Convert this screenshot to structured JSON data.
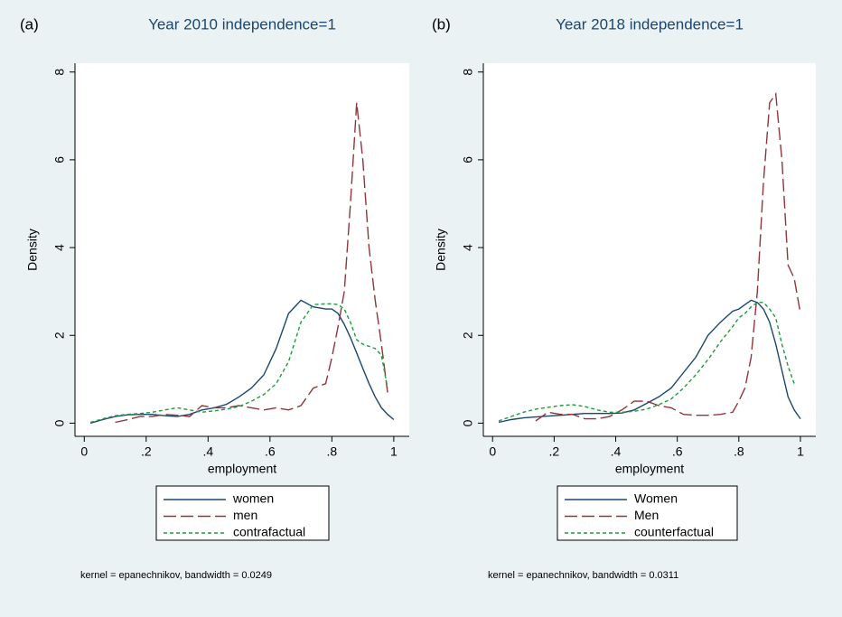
{
  "chart_data": [
    {
      "type": "line",
      "panel_label": "(a)",
      "title": "Year 2010 independence=1",
      "x_label": "employment",
      "y_label": "Density",
      "note": "kernel = epanechnikov, bandwidth = 0.0249",
      "legend": "below",
      "x": [
        0.02,
        0.06,
        0.1,
        0.14,
        0.18,
        0.22,
        0.26,
        0.3,
        0.34,
        0.38,
        0.42,
        0.46,
        0.5,
        0.54,
        0.58,
        0.62,
        0.66,
        0.7,
        0.74,
        0.78,
        0.8,
        0.82,
        0.84,
        0.86,
        0.88,
        0.9,
        0.92,
        0.94,
        0.96,
        0.98,
        1.0
      ],
      "series": [
        {
          "name": "women",
          "color": "#1a476f",
          "style": "solid",
          "values": [
            0.0,
            0.08,
            0.15,
            0.19,
            0.2,
            0.2,
            0.17,
            0.15,
            0.2,
            0.3,
            0.35,
            0.43,
            0.6,
            0.8,
            1.1,
            1.7,
            2.5,
            2.8,
            2.65,
            2.6,
            2.6,
            2.5,
            2.25,
            1.95,
            1.6,
            1.25,
            0.9,
            0.6,
            0.35,
            0.2,
            0.08
          ]
        },
        {
          "name": "men",
          "color": "#90353b",
          "style": "long-dash",
          "values": [
            null,
            null,
            0.02,
            0.08,
            0.15,
            0.15,
            0.2,
            0.18,
            0.15,
            0.4,
            0.35,
            0.35,
            0.4,
            0.35,
            0.3,
            0.35,
            0.3,
            0.4,
            0.8,
            0.9,
            1.5,
            2.2,
            3.0,
            5.0,
            7.3,
            6.0,
            4.0,
            2.8,
            1.8,
            0.7,
            null
          ]
        },
        {
          "name": "contrafactual",
          "color": "#1f9a3b",
          "style": "short-dash",
          "values": [
            0.02,
            0.1,
            0.17,
            0.2,
            0.22,
            0.25,
            0.3,
            0.35,
            0.3,
            0.25,
            0.28,
            0.32,
            0.38,
            0.5,
            0.65,
            0.9,
            1.4,
            2.3,
            2.7,
            2.72,
            2.72,
            2.7,
            2.6,
            2.3,
            1.9,
            1.8,
            1.75,
            1.7,
            1.55,
            0.8,
            null
          ]
        }
      ],
      "xlim": [
        -0.03,
        1.05
      ],
      "ylim": [
        -0.3,
        8.2
      ],
      "xticks": [
        0,
        {
          "value": 0.2,
          "label": ".2"
        },
        {
          "value": 0.4,
          "label": ".4"
        },
        {
          "value": 0.6,
          "label": ".6"
        },
        {
          "value": 0.8,
          "label": ".8"
        },
        1
      ],
      "yticks": [
        0,
        2,
        4,
        6,
        8
      ]
    },
    {
      "type": "line",
      "panel_label": "(b)",
      "title": "Year 2018 independence=1",
      "x_label": "employment",
      "y_label": "Density",
      "note": "kernel = epanechnikov, bandwidth = 0.0311",
      "legend": "below",
      "x": [
        0.02,
        0.06,
        0.1,
        0.14,
        0.18,
        0.22,
        0.26,
        0.3,
        0.34,
        0.38,
        0.42,
        0.46,
        0.5,
        0.54,
        0.58,
        0.62,
        0.66,
        0.7,
        0.74,
        0.78,
        0.8,
        0.82,
        0.84,
        0.86,
        0.88,
        0.9,
        0.92,
        0.94,
        0.96,
        0.98,
        1.0
      ],
      "series": [
        {
          "name": "Women",
          "color": "#1a476f",
          "style": "solid",
          "values": [
            0.02,
            0.08,
            0.12,
            0.14,
            0.16,
            0.18,
            0.2,
            0.22,
            0.22,
            0.22,
            0.23,
            0.3,
            0.45,
            0.6,
            0.8,
            1.15,
            1.5,
            2.0,
            2.3,
            2.55,
            2.6,
            2.7,
            2.8,
            2.75,
            2.6,
            2.3,
            1.8,
            1.2,
            0.6,
            0.3,
            0.1
          ]
        },
        {
          "name": "Men",
          "color": "#90353b",
          "style": "long-dash",
          "values": [
            null,
            null,
            null,
            0.05,
            0.25,
            0.2,
            0.2,
            0.1,
            0.1,
            0.15,
            0.3,
            0.5,
            0.5,
            0.4,
            0.35,
            0.2,
            0.18,
            0.18,
            0.2,
            0.25,
            0.5,
            0.8,
            1.5,
            3.0,
            5.5,
            7.3,
            7.5,
            6.0,
            3.6,
            3.3,
            2.5
          ]
        },
        {
          "name": "counterfactual",
          "color": "#1f9a3b",
          "style": "short-dash",
          "values": [
            0.05,
            0.15,
            0.25,
            0.32,
            0.36,
            0.4,
            0.42,
            0.38,
            0.3,
            0.25,
            0.25,
            0.27,
            0.32,
            0.42,
            0.55,
            0.8,
            1.1,
            1.45,
            1.85,
            2.2,
            2.4,
            2.5,
            2.65,
            2.75,
            2.75,
            2.6,
            2.4,
            1.8,
            1.3,
            0.9,
            null
          ]
        }
      ],
      "xlim": [
        -0.03,
        1.05
      ],
      "ylim": [
        -0.3,
        8.2
      ],
      "xticks": [
        0,
        {
          "value": 0.2,
          "label": ".2"
        },
        {
          "value": 0.4,
          "label": ".4"
        },
        {
          "value": 0.6,
          "label": ".6"
        },
        {
          "value": 0.8,
          "label": ".8"
        },
        1
      ],
      "yticks": [
        0,
        2,
        4,
        6,
        8
      ]
    }
  ]
}
